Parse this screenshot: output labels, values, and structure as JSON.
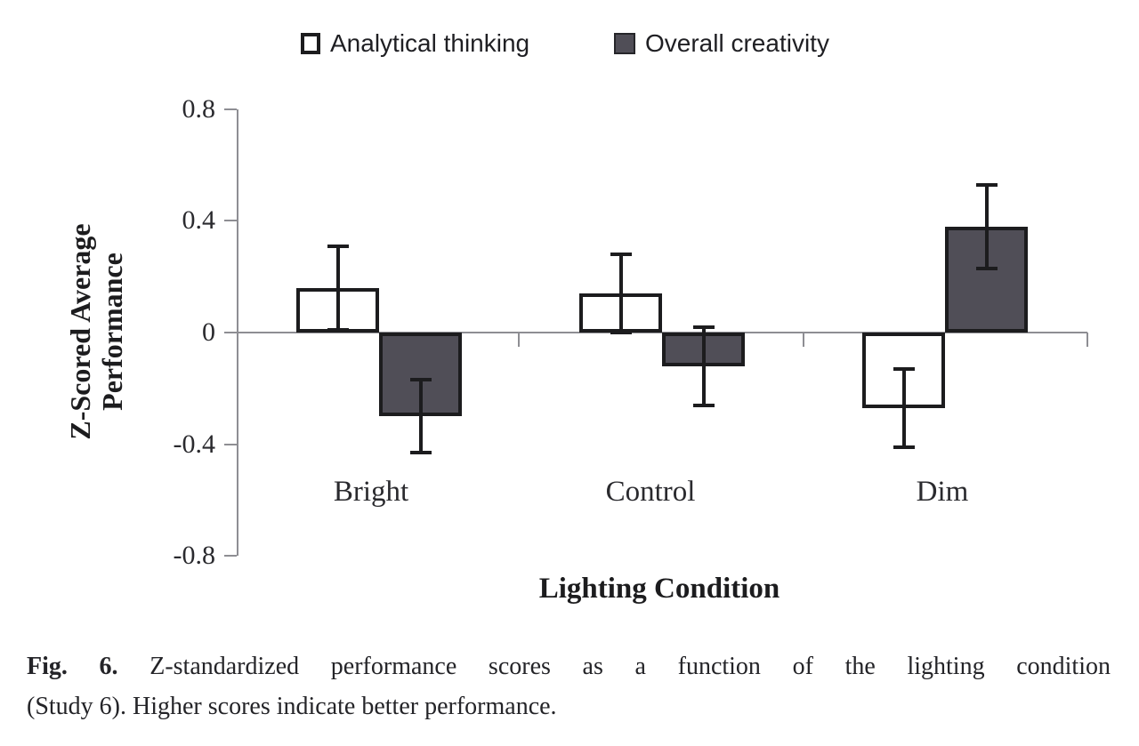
{
  "figure": {
    "caption": {
      "prefix": "Fig. 6.",
      "line1": "Z-standardized performance scores as a function of the lighting condition",
      "line2": "(Study 6). Higher scores indicate better performance."
    }
  },
  "chart_data": {
    "type": "bar",
    "title": "",
    "categories": [
      "Bright",
      "Control",
      "Dim"
    ],
    "series": [
      {
        "name": "Analytical thinking",
        "values": [
          0.16,
          0.14,
          -0.27
        ],
        "errors": [
          0.15,
          0.14,
          0.14
        ],
        "fill": "#ffffff"
      },
      {
        "name": "Overall creativity",
        "values": [
          -0.3,
          -0.12,
          0.38
        ],
        "errors": [
          0.13,
          0.14,
          0.15
        ],
        "fill": "#504e57"
      }
    ],
    "xlabel": "Lighting Condition",
    "ylabel": "Z-Scored Average Performance",
    "ylabel_lines": [
      "Z-Scored Average",
      "Performance"
    ],
    "ylim": [
      -0.8,
      0.8
    ],
    "yticks": [
      0.8,
      0.4,
      0,
      -0.4,
      -0.8
    ],
    "grid": false,
    "legend_position": "top",
    "error_bars": true,
    "colors": {
      "ink": "#1c1c1e",
      "axis": "#8e8e93",
      "dark_fill": "#504e57",
      "background": "#ffffff"
    }
  }
}
